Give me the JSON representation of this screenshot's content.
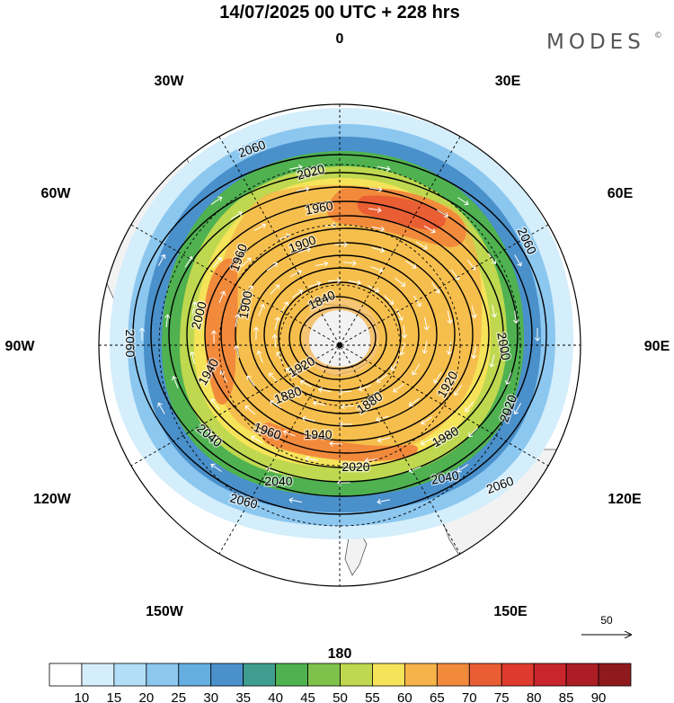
{
  "header": {
    "title": "14/07/2025  00 UTC  + 228 hrs",
    "brand": "MODES",
    "brand_mark": "©"
  },
  "map": {
    "projection": "south-polar-stereographic",
    "longitude_labels": {
      "top": "0",
      "top_right": "30E",
      "upper_right": "60E",
      "right": "90E",
      "lower_right": "120E",
      "bottom_right": "150E",
      "bottom": "180",
      "bottom_left": "150W",
      "lower_left": "120W",
      "left": "90W",
      "upper_left": "60W",
      "top_left": "30W"
    },
    "contour_labels": [
      "2060",
      "2020",
      "1960",
      "1900",
      "1840",
      "2000",
      "1900",
      "1960",
      "2060",
      "2060",
      "2000",
      "1920",
      "1940",
      "1880",
      "1880",
      "1920",
      "2020",
      "1980",
      "1940",
      "1960",
      "2040",
      "2020",
      "2040",
      "2040",
      "2060",
      "2060"
    ],
    "contour_levels": [
      1840,
      1880,
      1920,
      1960,
      2000,
      2040,
      2060
    ],
    "reference_vector": {
      "value": "50",
      "icon": "arrow-right-icon"
    }
  },
  "colorbar": {
    "tick_labels": [
      "10",
      "15",
      "20",
      "25",
      "30",
      "35",
      "40",
      "45",
      "50",
      "55",
      "60",
      "65",
      "70",
      "75",
      "80",
      "85",
      "90"
    ],
    "colors": [
      "#ffffff",
      "#d4eefb",
      "#b2def7",
      "#8cc7ef",
      "#65aee2",
      "#4a90cb",
      "#3f9e8f",
      "#4fb150",
      "#7fc24b",
      "#bfd84f",
      "#f5e35a",
      "#f6b34a",
      "#f28a3c",
      "#ea5e33",
      "#de3b2e",
      "#c9252c",
      "#ad1d25",
      "#8f1a1e"
    ]
  }
}
